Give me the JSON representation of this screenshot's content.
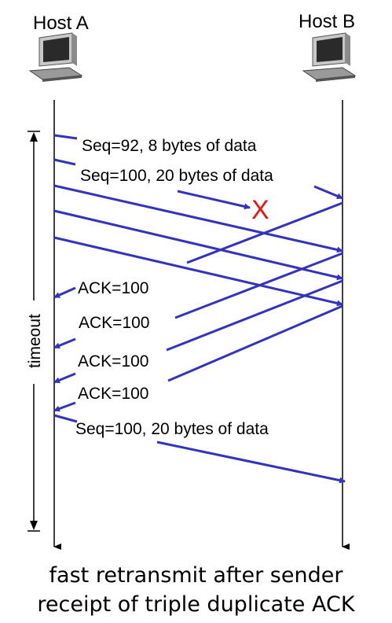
{
  "hosts": {
    "a": "Host A",
    "b": "Host B"
  },
  "timeout_label": "timeout",
  "loss_marker": "X",
  "labels": {
    "seq92": "Seq=92, 8 bytes of data",
    "seq100": "Seq=100, 20 bytes of data",
    "ack1": "ACK=100",
    "ack2": "ACK=100",
    "ack3": "ACK=100",
    "ack4": "ACK=100",
    "retransmit": "Seq=100, 20 bytes of data"
  },
  "caption": {
    "line1": "fast retransmit after sender",
    "line2": "receipt of triple duplicate ACK"
  },
  "colors": {
    "arrow": "#3333bb",
    "loss": "#ee1111",
    "timeline": "#000000"
  },
  "icons": {
    "host_a": "computer-icon",
    "host_b": "computer-icon"
  }
}
